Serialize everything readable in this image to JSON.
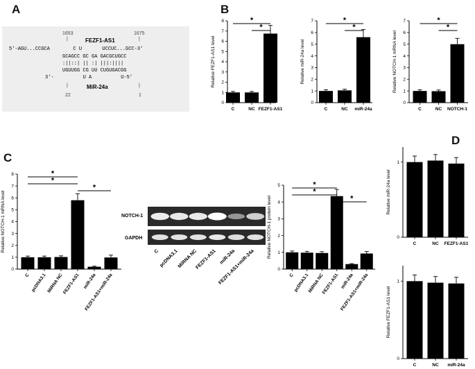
{
  "panels": {
    "A": "A",
    "B": "B",
    "C": "C",
    "D": "D"
  },
  "pairing": {
    "pos_left": "1653",
    "pos_right": "1675",
    "gene_label": "FEZF1-AS1",
    "mir_label": "MiR-24a",
    "top_seq": "5'-AGU...CCGCA        C U       UCCUC...GCC-3'",
    "top_mid": "GCAGCC GC GA GACGCUGCC",
    "bonds": ":||::| || :| |||:||||",
    "bot_mid": "UGUUGG CG UU CUGUGACGG",
    "bot_seq": "3'-          U A          U-5'",
    "num_left": "22",
    "num_right": "1"
  },
  "blot": {
    "labels": [
      "NOTCH-1",
      "GAPDH"
    ],
    "lanes": [
      "C",
      "pcDNA3.1",
      "MiRNA NC",
      "FEZF1-AS1",
      "miR-24a",
      "FEZF1-AS1+miR-24a"
    ],
    "notch_intensity": [
      0.9,
      0.88,
      0.88,
      1.0,
      0.45,
      0.75
    ],
    "gapdh_intensity": [
      0.85,
      0.85,
      0.85,
      0.88,
      0.83,
      0.85
    ]
  },
  "chart_data": [
    {
      "id": "B1",
      "type": "bar",
      "categories": [
        "C",
        "NC",
        "FEZF1-AS1"
      ],
      "values": [
        1.0,
        1.0,
        6.75
      ],
      "errors": [
        0.1,
        0.1,
        0.8
      ],
      "ylabel": "Relative FEZF1-AS1 level",
      "ylim": [
        0,
        8
      ],
      "yticks": [
        0,
        1,
        2,
        3,
        4,
        5,
        6,
        7,
        8
      ],
      "significance": [
        {
          "from": 0,
          "to": 2,
          "label": "*"
        },
        {
          "from": 1,
          "to": 2,
          "label": "*"
        }
      ]
    },
    {
      "id": "B2",
      "type": "bar",
      "categories": [
        "C",
        "NC",
        "miR-24a"
      ],
      "values": [
        1.0,
        1.05,
        5.6
      ],
      "errors": [
        0.1,
        0.1,
        0.65
      ],
      "ylabel": "Relative miR-24a level",
      "ylim": [
        0,
        7
      ],
      "yticks": [
        0,
        1,
        2,
        3,
        4,
        5,
        6,
        7
      ],
      "significance": [
        {
          "from": 0,
          "to": 2,
          "label": "*"
        },
        {
          "from": 1,
          "to": 2,
          "label": "*"
        }
      ]
    },
    {
      "id": "B3",
      "type": "bar",
      "categories": [
        "C",
        "NC",
        "NOTCH-1"
      ],
      "values": [
        1.0,
        0.98,
        5.0
      ],
      "errors": [
        0.1,
        0.1,
        0.5
      ],
      "ylabel": "Relative NOTCH-1 mRNA level",
      "ylim": [
        0,
        7
      ],
      "yticks": [
        0,
        1,
        2,
        3,
        4,
        5,
        6,
        7
      ],
      "significance": [
        {
          "from": 0,
          "to": 2,
          "label": "*"
        },
        {
          "from": 1,
          "to": 2,
          "label": "*"
        }
      ]
    },
    {
      "id": "C1",
      "type": "bar",
      "categories": [
        "C",
        "pcDNA3.1",
        "MiRNA NC",
        "FEZF1-AS1",
        "miR-24a",
        "FEZF1-AS1+miR-24a"
      ],
      "values": [
        1.0,
        1.0,
        1.02,
        5.8,
        0.2,
        0.98
      ],
      "errors": [
        0.1,
        0.1,
        0.1,
        0.55,
        0.05,
        0.2
      ],
      "ylabel": "Relative NOTCH-1 mRNA level",
      "ylim": [
        0,
        8
      ],
      "yticks": [
        0,
        1,
        2,
        3,
        4,
        5,
        6,
        7,
        8
      ],
      "significance": [
        {
          "from": 0,
          "to": 3,
          "label": "*"
        },
        {
          "from": 0,
          "to": 3,
          "label": "*"
        },
        {
          "from": 3,
          "to": 5,
          "label": "*"
        }
      ]
    },
    {
      "id": "C2",
      "type": "bar",
      "categories": [
        "C",
        "pcDNA3.1",
        "MiRNA NC",
        "FEZF1-AS1",
        "miR-24a",
        "FEZF1-AS1+miR-24a"
      ],
      "values": [
        1.0,
        0.98,
        0.96,
        4.35,
        0.3,
        0.93
      ],
      "errors": [
        0.08,
        0.08,
        0.08,
        0.4,
        0.03,
        0.12
      ],
      "ylabel": "Relative NOTCH-1 protein level",
      "ylim": [
        0,
        5
      ],
      "yticks": [
        0,
        1,
        2,
        3,
        4,
        5
      ],
      "significance": [
        {
          "from": 0,
          "to": 3,
          "label": "*"
        },
        {
          "from": 0,
          "to": 3,
          "label": "*"
        },
        {
          "from": 3,
          "to": 5,
          "label": "*"
        }
      ]
    },
    {
      "id": "D1",
      "type": "bar",
      "categories": [
        "C",
        "NC",
        "FEZF1-AS1"
      ],
      "values": [
        1.0,
        1.02,
        0.98
      ],
      "errors": [
        0.08,
        0.08,
        0.08
      ],
      "ylabel": "Relative miR-24a level",
      "ylim": [
        0,
        1.2
      ],
      "yticks": [
        0,
        1
      ],
      "significance": []
    },
    {
      "id": "D2",
      "type": "bar",
      "categories": [
        "C",
        "NC",
        "miR-24a"
      ],
      "values": [
        1.0,
        0.98,
        0.97
      ],
      "errors": [
        0.08,
        0.08,
        0.08
      ],
      "ylabel": "Relative FEZF1-AS1 level",
      "ylim": [
        0,
        1.2
      ],
      "yticks": [
        0,
        1
      ],
      "significance": []
    }
  ]
}
